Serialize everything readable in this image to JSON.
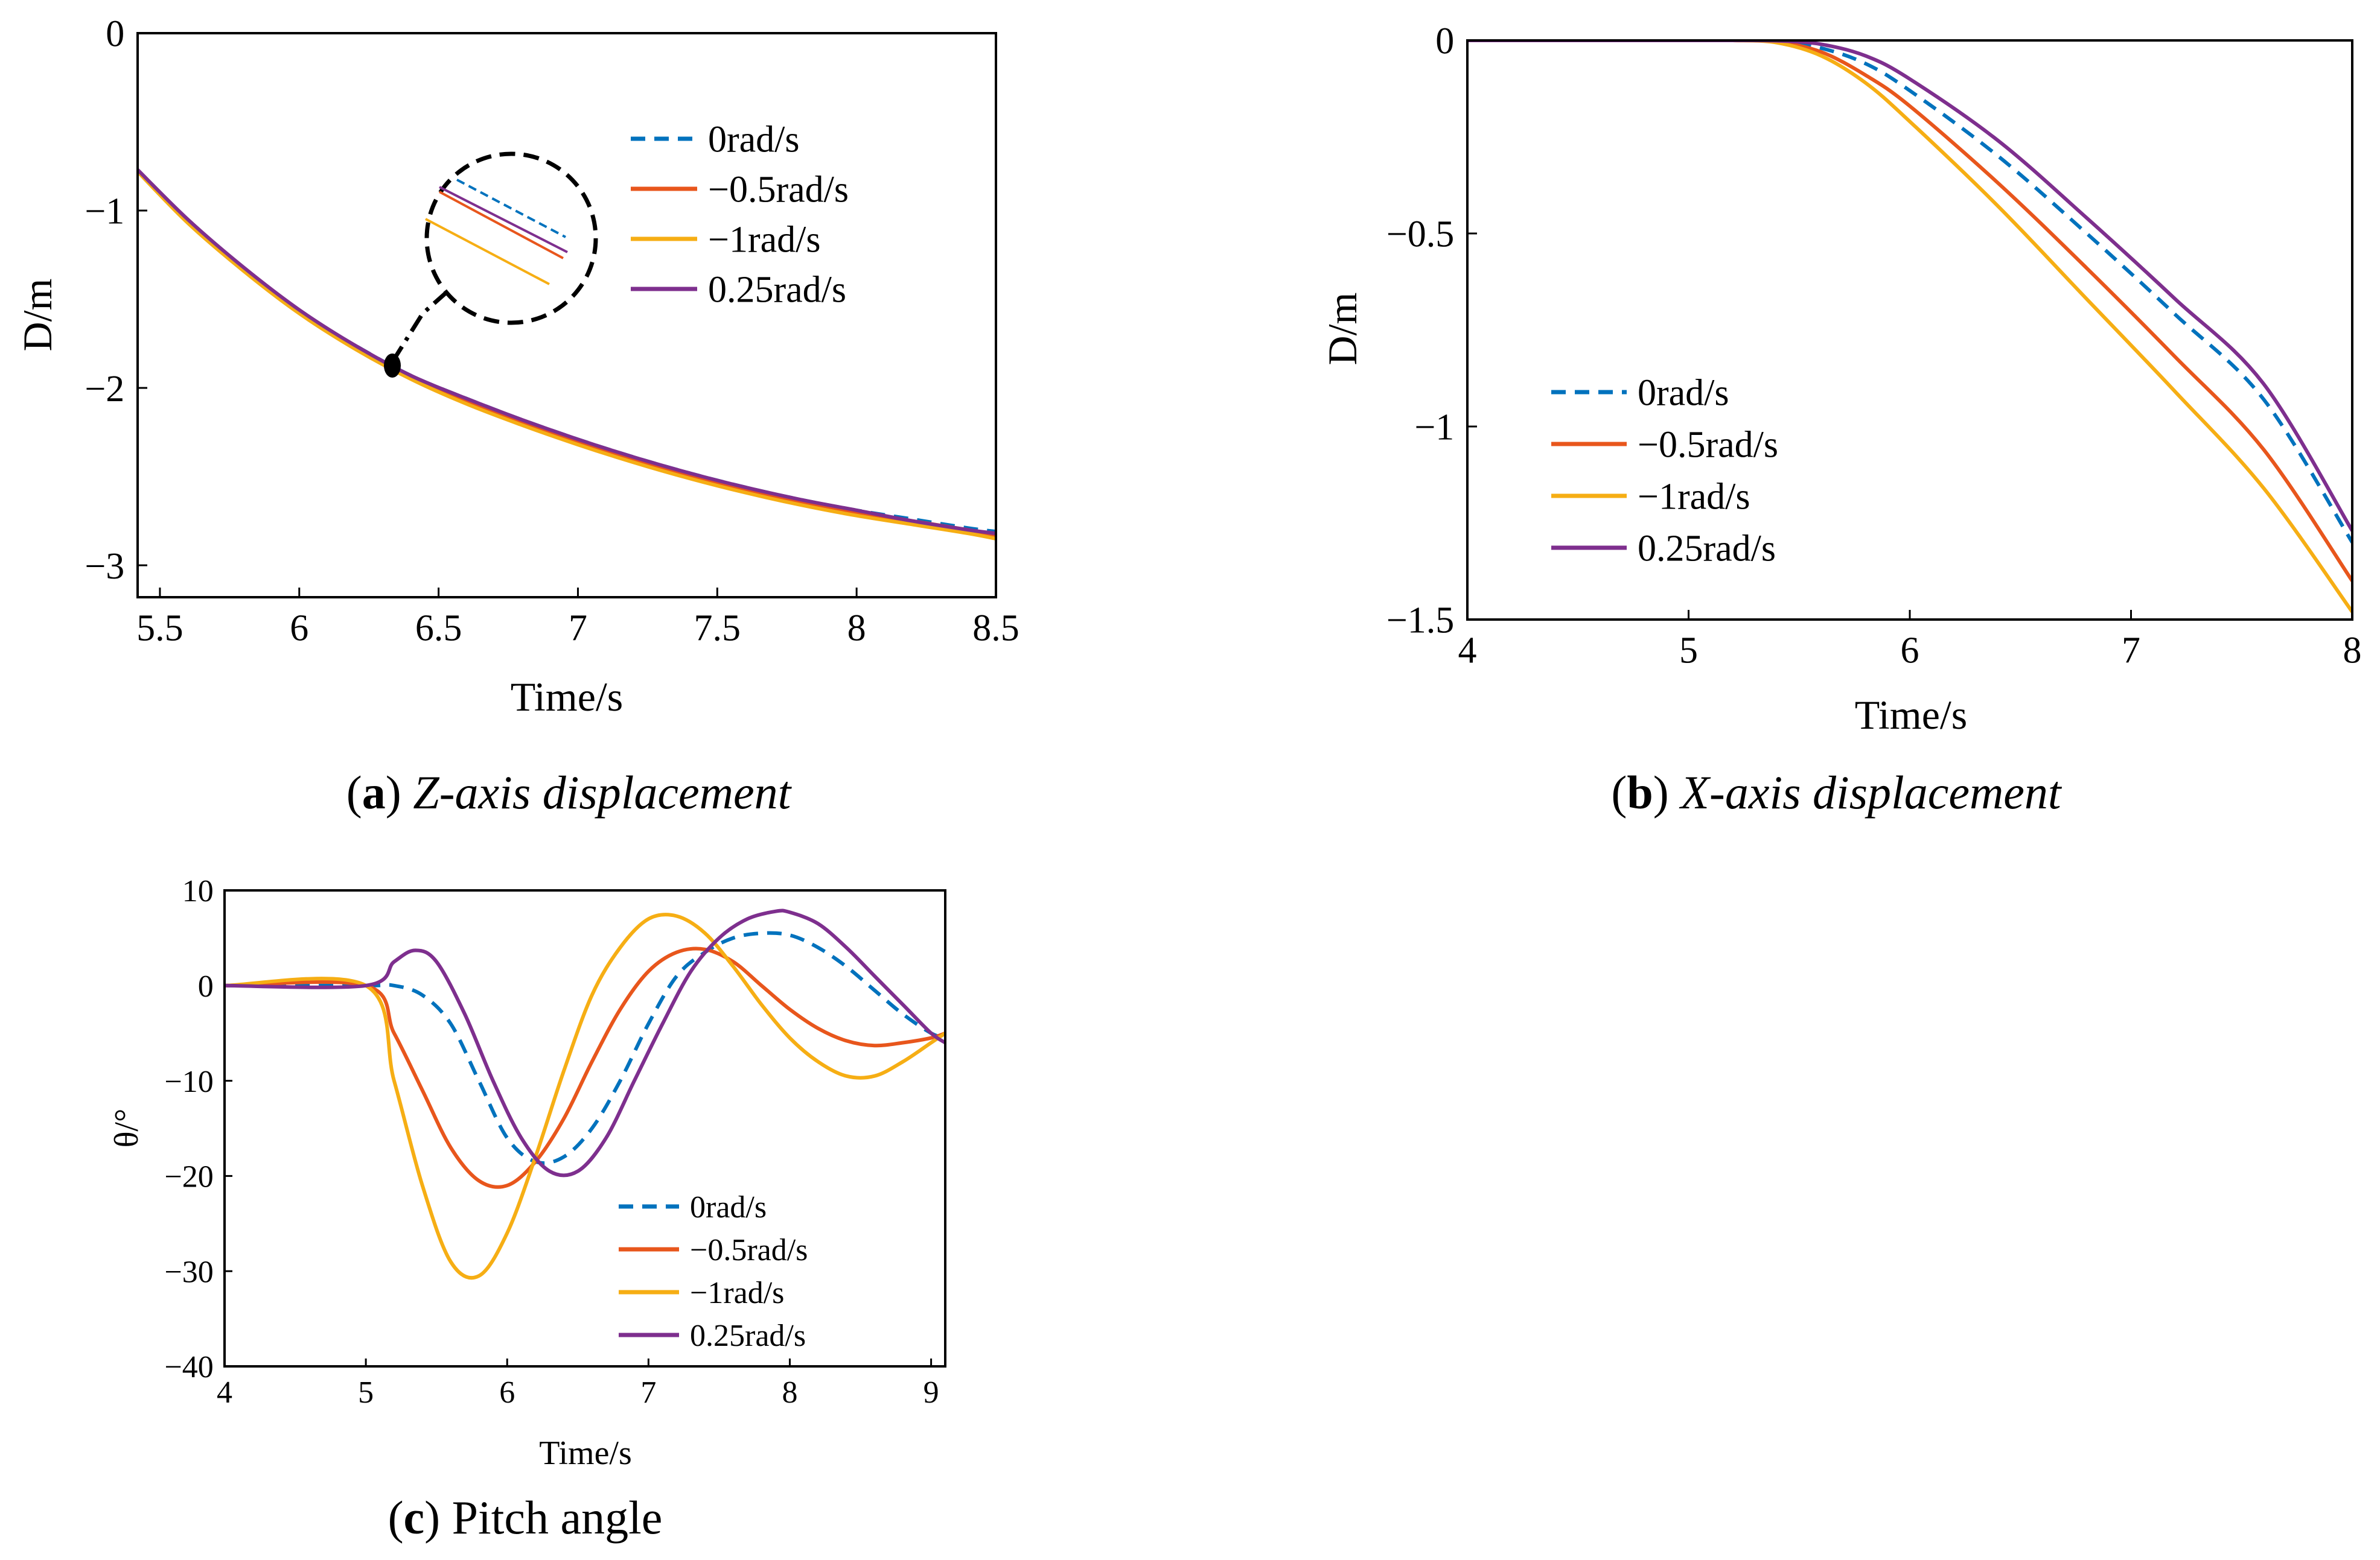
{
  "colors": {
    "s0": "#0072BD",
    "s1": "#E8561C",
    "s2": "#F6AE14",
    "s3": "#7E2F8E"
  },
  "captions": {
    "a": {
      "letter": "a",
      "text": "Z-axis displacement"
    },
    "b": {
      "letter": "b",
      "text": "X-axis displacement"
    },
    "c": {
      "letter": "c",
      "text": "Pitch angle"
    }
  },
  "chart_data": [
    {
      "id": "a",
      "type": "line",
      "title": "",
      "xlabel": "Time/s",
      "ylabel": "D/m",
      "xlim": [
        5.42,
        8.5
      ],
      "ylim": [
        -3.18,
        0
      ],
      "xticks": [
        5.5,
        6,
        6.5,
        7,
        7.5,
        8,
        8.5
      ],
      "xtick_labels": [
        "5.5",
        "6",
        "6.5",
        "7",
        "7.5",
        "8",
        "8.5"
      ],
      "yticks": [
        0,
        -1,
        -2,
        -3
      ],
      "ytick_labels": [
        "0",
        "−1",
        "−2",
        "−3"
      ],
      "legend": [
        "0rad/s",
        "−0.5rad/s",
        "−1rad/s",
        "0.25rad/s"
      ],
      "legend_position": "top-right",
      "annotation": "zoom inset near t = 6.33 s",
      "series": [
        {
          "name": "0rad/s",
          "style": "dashed",
          "x": [
            5.42,
            5.6,
            5.8,
            6.0,
            6.2,
            6.4,
            6.6,
            6.8,
            7.0,
            7.2,
            7.4,
            7.6,
            7.8,
            8.0,
            8.2,
            8.4,
            8.5
          ],
          "y": [
            -0.78,
            -1.06,
            -1.33,
            -1.57,
            -1.76,
            -1.93,
            -2.06,
            -2.18,
            -2.29,
            -2.39,
            -2.48,
            -2.56,
            -2.63,
            -2.69,
            -2.74,
            -2.79,
            -2.81
          ]
        },
        {
          "name": "−0.5rad/s",
          "style": "solid",
          "x": [
            5.42,
            5.6,
            5.8,
            6.0,
            6.2,
            6.4,
            6.6,
            6.8,
            7.0,
            7.2,
            7.4,
            7.6,
            7.8,
            8.0,
            8.2,
            8.4,
            8.5
          ],
          "y": [
            -0.78,
            -1.06,
            -1.33,
            -1.57,
            -1.77,
            -1.94,
            -2.07,
            -2.19,
            -2.3,
            -2.4,
            -2.49,
            -2.57,
            -2.64,
            -2.7,
            -2.75,
            -2.8,
            -2.83
          ]
        },
        {
          "name": "−1rad/s",
          "style": "solid",
          "x": [
            5.42,
            5.6,
            5.8,
            6.0,
            6.2,
            6.4,
            6.6,
            6.8,
            7.0,
            7.2,
            7.4,
            7.6,
            7.8,
            8.0,
            8.2,
            8.4,
            8.5
          ],
          "y": [
            -0.78,
            -1.07,
            -1.34,
            -1.58,
            -1.78,
            -1.95,
            -2.09,
            -2.21,
            -2.32,
            -2.42,
            -2.51,
            -2.59,
            -2.66,
            -2.72,
            -2.77,
            -2.82,
            -2.85
          ]
        },
        {
          "name": "0.25rad/s",
          "style": "solid",
          "x": [
            5.42,
            5.6,
            5.8,
            6.0,
            6.2,
            6.4,
            6.6,
            6.8,
            7.0,
            7.2,
            7.4,
            7.6,
            7.8,
            8.0,
            8.2,
            8.4,
            8.5
          ],
          "y": [
            -0.77,
            -1.05,
            -1.32,
            -1.56,
            -1.76,
            -1.93,
            -2.06,
            -2.18,
            -2.29,
            -2.39,
            -2.48,
            -2.56,
            -2.63,
            -2.69,
            -2.75,
            -2.8,
            -2.82
          ]
        }
      ]
    },
    {
      "id": "b",
      "type": "line",
      "title": "",
      "xlabel": "Time/s",
      "ylabel": "D/m",
      "xlim": [
        4,
        8
      ],
      "ylim": [
        -1.5,
        0
      ],
      "xticks": [
        4,
        5,
        6,
        7,
        8
      ],
      "xtick_labels": [
        "4",
        "5",
        "6",
        "7",
        "8"
      ],
      "yticks": [
        0,
        -0.5,
        -1,
        -1.5
      ],
      "ytick_labels": [
        "0",
        "−0.5",
        "−1",
        "−1.5"
      ],
      "legend": [
        "0rad/s",
        "−0.5rad/s",
        "−1rad/s",
        "0.25rad/s"
      ],
      "legend_position": "center-left",
      "series": [
        {
          "name": "0rad/s",
          "style": "dashed",
          "x": [
            4,
            5,
            5.2,
            5.4,
            5.6,
            5.8,
            6.0,
            6.4,
            6.8,
            7.2,
            7.6,
            8.0
          ],
          "y": [
            0,
            0,
            0,
            -0.002,
            -0.02,
            -0.06,
            -0.13,
            -0.3,
            -0.5,
            -0.71,
            -0.93,
            -1.3
          ]
        },
        {
          "name": "−0.5rad/s",
          "style": "solid",
          "x": [
            4,
            5,
            5.2,
            5.4,
            5.6,
            5.8,
            6.0,
            6.4,
            6.8,
            7.2,
            7.6,
            8.0
          ],
          "y": [
            0,
            0,
            0,
            -0.004,
            -0.03,
            -0.09,
            -0.17,
            -0.37,
            -0.59,
            -0.82,
            -1.06,
            -1.4
          ]
        },
        {
          "name": "−1rad/s",
          "style": "solid",
          "x": [
            4,
            5,
            5.2,
            5.4,
            5.6,
            5.8,
            6.0,
            6.4,
            6.8,
            7.2,
            7.6,
            8.0
          ],
          "y": [
            0,
            0,
            0,
            -0.006,
            -0.04,
            -0.11,
            -0.21,
            -0.43,
            -0.67,
            -0.91,
            -1.16,
            -1.48
          ]
        },
        {
          "name": "0.25rad/s",
          "style": "solid",
          "x": [
            4,
            5,
            5.2,
            5.4,
            5.6,
            5.8,
            6.0,
            6.4,
            6.8,
            7.2,
            7.6,
            8.0
          ],
          "y": [
            0,
            0,
            0,
            -0.001,
            -0.01,
            -0.04,
            -0.1,
            -0.26,
            -0.46,
            -0.67,
            -0.89,
            -1.27
          ]
        }
      ]
    },
    {
      "id": "c",
      "type": "line",
      "title": "",
      "xlabel": "Time/s",
      "ylabel": "θ/°",
      "xlim": [
        4,
        9.1
      ],
      "ylim": [
        -40,
        10
      ],
      "xticks": [
        4,
        5,
        6,
        7,
        8,
        9
      ],
      "xtick_labels": [
        "4",
        "5",
        "6",
        "7",
        "8",
        "9"
      ],
      "yticks": [
        10,
        0,
        -10,
        -20,
        -30,
        -40
      ],
      "ytick_labels": [
        "10",
        "0",
        "−10",
        "−20",
        "−30",
        "−40"
      ],
      "legend": [
        "0rad/s",
        "−0.5rad/s",
        "−1rad/s",
        "0.25rad/s"
      ],
      "legend_position": "bottom-right",
      "series": [
        {
          "name": "0rad/s",
          "style": "dashed",
          "x": [
            4,
            5,
            5.2,
            5.4,
            5.6,
            5.8,
            6.0,
            6.2,
            6.4,
            6.6,
            6.8,
            7.0,
            7.2,
            7.4,
            7.6,
            7.8,
            8.0,
            8.2,
            8.4,
            8.6,
            8.8,
            9.0,
            9.1
          ],
          "y": [
            0,
            0,
            0,
            -1,
            -4,
            -10,
            -16,
            -18.5,
            -18,
            -15,
            -10,
            -4,
            1,
            3.5,
            5,
            5.5,
            5.3,
            4,
            2,
            -0.5,
            -3,
            -5,
            -5.5
          ]
        },
        {
          "name": "−0.5rad/s",
          "style": "solid",
          "x": [
            4,
            5,
            5.2,
            5.4,
            5.6,
            5.8,
            6.0,
            6.2,
            6.4,
            6.6,
            6.8,
            7.0,
            7.2,
            7.4,
            7.6,
            7.8,
            8.0,
            8.2,
            8.4,
            8.6,
            8.8,
            9.0,
            9.1
          ],
          "y": [
            0,
            0,
            -5,
            -11,
            -17,
            -20.5,
            -21,
            -18.5,
            -14,
            -8,
            -2.5,
            1.5,
            3.5,
            3.8,
            2.5,
            0,
            -2.5,
            -4.5,
            -5.8,
            -6.3,
            -6,
            -5.5,
            -5
          ]
        },
        {
          "name": "−1rad/s",
          "style": "solid",
          "x": [
            4,
            5,
            5.2,
            5.4,
            5.6,
            5.8,
            6.0,
            6.2,
            6.4,
            6.6,
            6.8,
            7.0,
            7.2,
            7.4,
            7.6,
            7.8,
            8.0,
            8.2,
            8.4,
            8.6,
            8.8,
            9.0,
            9.1
          ],
          "y": [
            0,
            0,
            -10,
            -21,
            -29,
            -30.5,
            -26,
            -18,
            -9,
            -1,
            4,
            7,
            7.3,
            5.5,
            2,
            -2,
            -5.5,
            -8,
            -9.5,
            -9.5,
            -8,
            -6,
            -5
          ]
        },
        {
          "name": "0.25rad/s",
          "style": "solid",
          "x": [
            4,
            5,
            5.2,
            5.35,
            5.5,
            5.7,
            5.9,
            6.1,
            6.3,
            6.5,
            6.7,
            6.9,
            7.1,
            7.3,
            7.5,
            7.7,
            7.9,
            8.0,
            8.2,
            8.4,
            8.6,
            8.8,
            9.0,
            9.1
          ],
          "y": [
            0,
            0,
            2.5,
            3.7,
            2.5,
            -3,
            -10,
            -16,
            -19.5,
            -19.5,
            -16,
            -10,
            -4,
            1.5,
            5,
            7,
            7.8,
            7.7,
            6.5,
            4,
            1,
            -2,
            -5,
            -6
          ]
        }
      ]
    }
  ]
}
